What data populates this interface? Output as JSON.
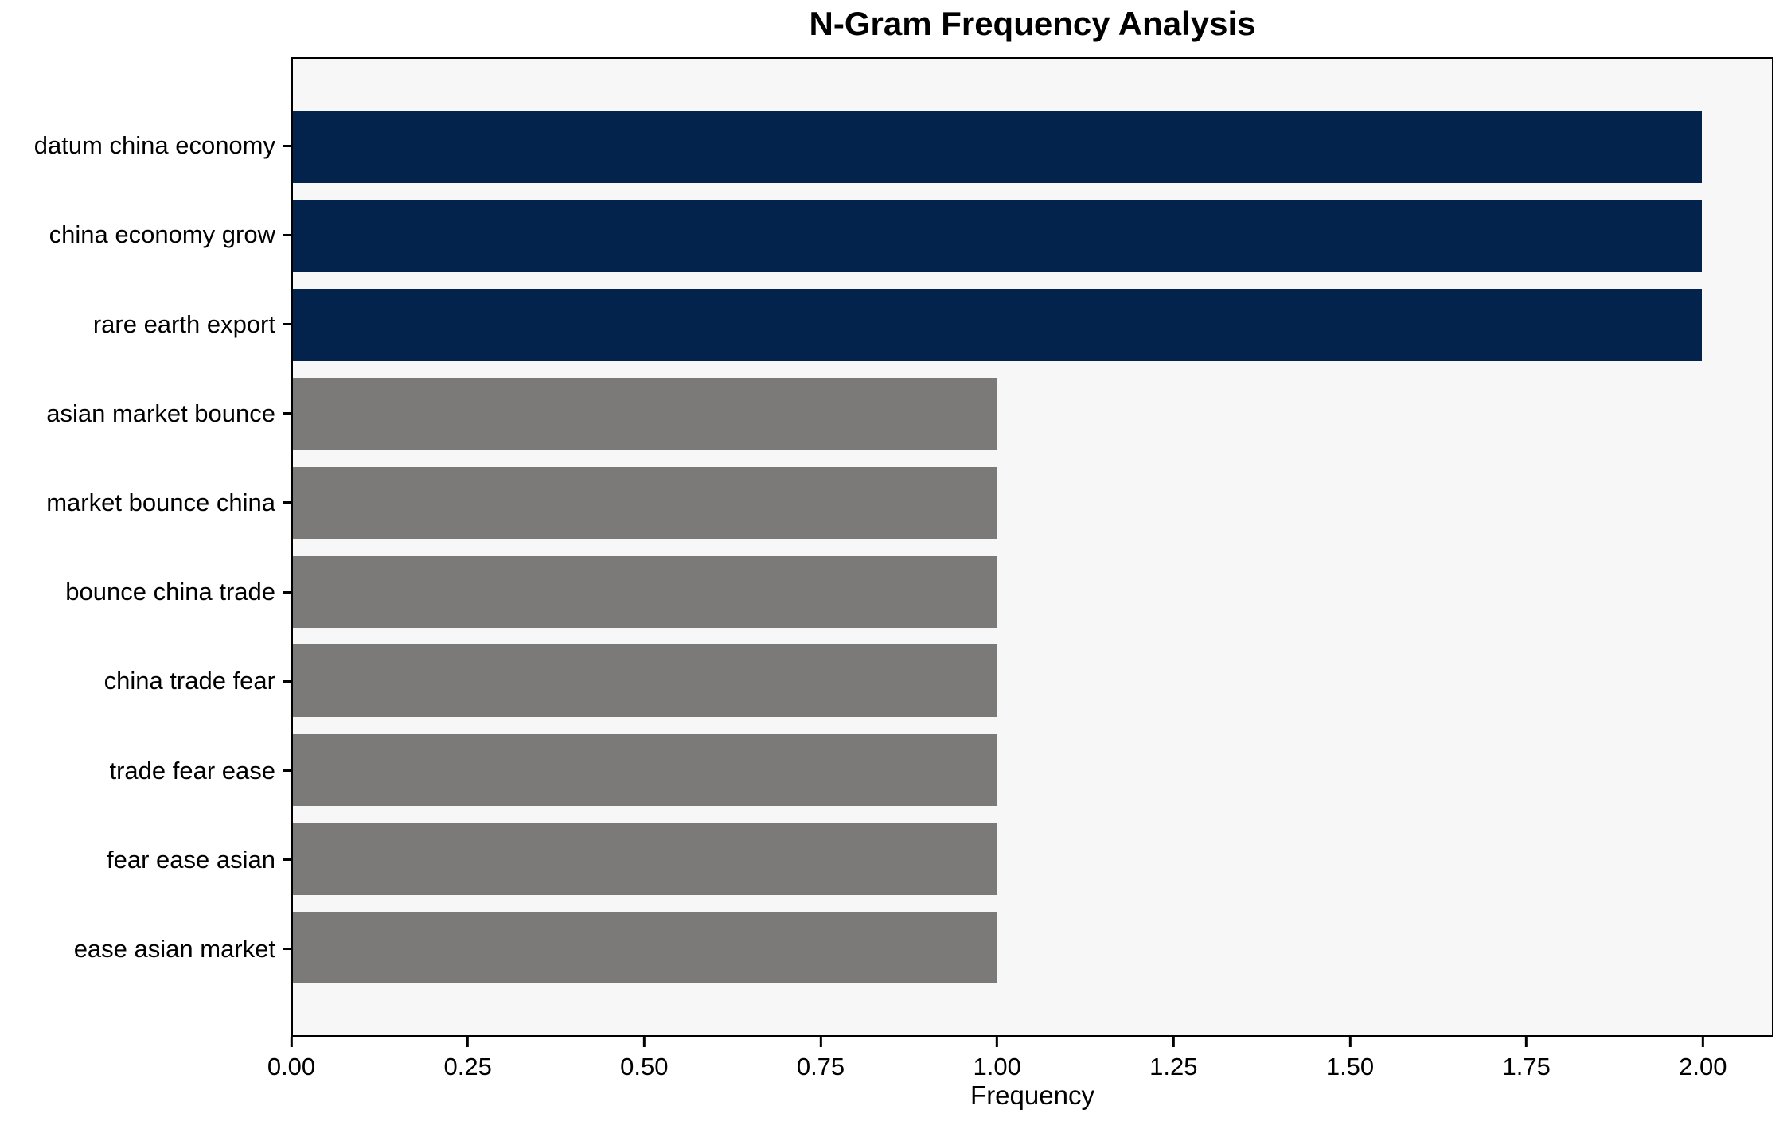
{
  "chart_data": {
    "type": "bar",
    "orientation": "horizontal",
    "title": "N-Gram Frequency Analysis",
    "xlabel": "Frequency",
    "ylabel": "",
    "categories": [
      "datum china economy",
      "china economy grow",
      "rare earth export",
      "asian market bounce",
      "market bounce china",
      "bounce china trade",
      "china trade fear",
      "trade fear ease",
      "fear ease asian",
      "ease asian market"
    ],
    "values": [
      2,
      2,
      2,
      1,
      1,
      1,
      1,
      1,
      1,
      1
    ],
    "bar_colors": [
      "#03234d",
      "#03234d",
      "#03234d",
      "#7b7a78",
      "#7b7a78",
      "#7b7a78",
      "#7b7a78",
      "#7b7a78",
      "#7b7a78",
      "#7b7a78"
    ],
    "xlim": [
      0,
      2.1
    ],
    "xticks": [
      0,
      0.25,
      0.5,
      0.75,
      1,
      1.25,
      1.5,
      1.75,
      2
    ],
    "xtick_labels": [
      "0.00",
      "0.25",
      "0.50",
      "0.75",
      "1.00",
      "1.25",
      "1.50",
      "1.75",
      "2.00"
    ],
    "grid": false,
    "legend_position": "none",
    "colors": {
      "highlight_navy": "#03234d",
      "default_gray": "#7b7a78",
      "plot_background": "#f7f7f7",
      "figure_background": "#ffffff",
      "spine": "#000000",
      "text": "#000000"
    }
  }
}
